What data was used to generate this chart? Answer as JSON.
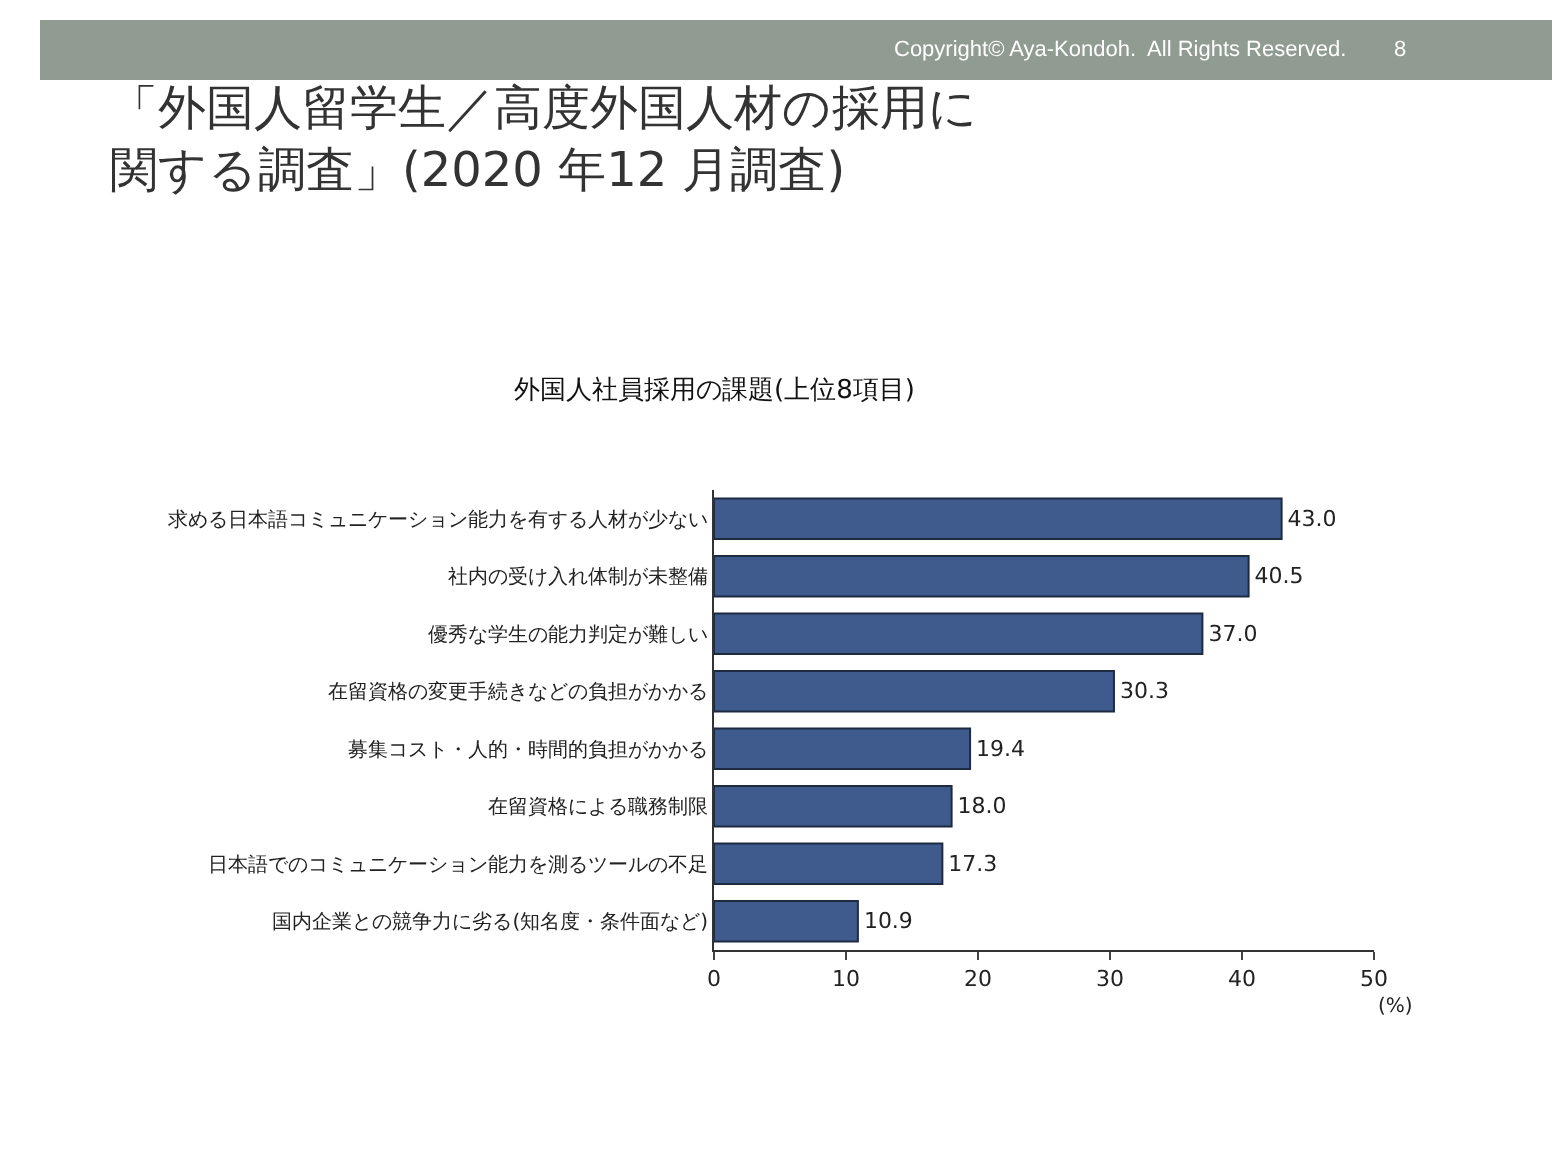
{
  "chart_data": {
    "type": "bar",
    "orientation": "horizontal",
    "title": "「外国人留学生／高度外国人材の採用に関する調査」(2020 年12 月調査)",
    "subtitle": "外国人社員採用の課題(上位8項目)",
    "xlabel": "(%)",
    "categories": [
      "求める日本語コミュニケーション能力を有する人材が少ない",
      "社内の受け入れ体制が未整備",
      "優秀な学生の能力判定が難しい",
      "在留資格の変更手続きなどの負担がかかる",
      "募集コスト・人的・時間的負担がかかる",
      "在留資格による職務制限",
      "日本語でのコミュニケーション能力を測るツールの不足",
      "国内企業との競争力に劣る(知名度・条件面など)"
    ],
    "values": [
      43.0,
      40.5,
      37.0,
      30.3,
      19.4,
      18.0,
      17.3,
      10.9
    ],
    "value_labels": [
      "43.0",
      "40.5",
      "37.0",
      "30.3",
      "19.4",
      "18.0",
      "17.3",
      "10.9"
    ],
    "color": "#3f5b8e",
    "xlim": [
      0,
      50
    ],
    "xticks": [
      0,
      10,
      20,
      30,
      40,
      50
    ],
    "annotations": [
      "Copyright© Aya-Kondoh.  All Rights Reserved.",
      "8"
    ]
  }
}
